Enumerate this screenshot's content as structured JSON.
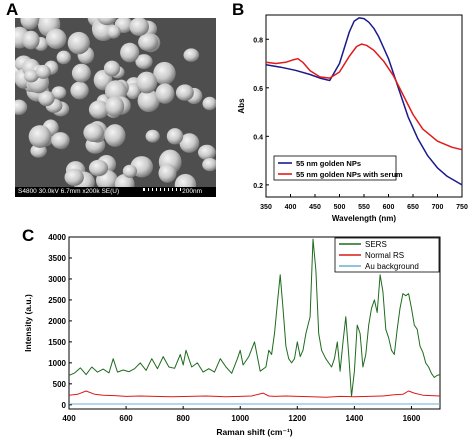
{
  "panels": {
    "a": "A",
    "b": "B",
    "c": "C"
  },
  "sem": {
    "caption": "S4800 30.0kV 6.7mm x200k SE(U)",
    "scale_label": "200nm"
  },
  "chart_data": [
    {
      "type": "line",
      "panel": "B",
      "xlabel": "Wavelength (nm)",
      "ylabel": "Abs",
      "xlim": [
        350,
        750
      ],
      "ylim": [
        0.15,
        0.9
      ],
      "xticks": [
        350,
        400,
        450,
        500,
        550,
        600,
        650,
        700,
        750
      ],
      "yticks": [
        0.2,
        0.4,
        0.6,
        0.8
      ],
      "ytick_labels": [
        "0.2",
        "0.4",
        "0.6",
        "0.8"
      ],
      "legend_position": "bottom-left",
      "series": [
        {
          "name": "55 nm golden NPs",
          "color": "#1a1a8c",
          "x": [
            350,
            380,
            410,
            440,
            460,
            480,
            500,
            520,
            530,
            540,
            550,
            560,
            570,
            580,
            600,
            620,
            640,
            660,
            680,
            700,
            720,
            750
          ],
          "y": [
            0.695,
            0.685,
            0.672,
            0.655,
            0.64,
            0.63,
            0.7,
            0.83,
            0.875,
            0.888,
            0.885,
            0.87,
            0.845,
            0.81,
            0.72,
            0.6,
            0.48,
            0.39,
            0.32,
            0.27,
            0.235,
            0.2
          ]
        },
        {
          "name": "55 nm golden NPs with serum",
          "color": "#e11a1a",
          "x": [
            350,
            370,
            390,
            405,
            415,
            425,
            440,
            460,
            480,
            500,
            520,
            535,
            545,
            555,
            570,
            590,
            610,
            630,
            650,
            670,
            700,
            730,
            750
          ],
          "y": [
            0.705,
            0.7,
            0.705,
            0.715,
            0.72,
            0.705,
            0.67,
            0.645,
            0.64,
            0.665,
            0.73,
            0.77,
            0.78,
            0.775,
            0.755,
            0.71,
            0.65,
            0.57,
            0.49,
            0.43,
            0.38,
            0.355,
            0.345
          ]
        }
      ]
    },
    {
      "type": "line",
      "panel": "C",
      "xlabel": "Raman shift (cm⁻¹)",
      "ylabel": "Intensity (a.u.)",
      "xlim": [
        400,
        1700
      ],
      "ylim": [
        -100,
        4000
      ],
      "xticks": [
        400,
        600,
        800,
        1000,
        1200,
        1400,
        1600
      ],
      "yticks": [
        0,
        500,
        1000,
        1500,
        2000,
        2500,
        3000,
        3500,
        4000
      ],
      "legend_position": "top-right",
      "series": [
        {
          "name": "SERS",
          "color": "#1e6b1e",
          "x": [
            400,
            420,
            440,
            460,
            480,
            500,
            520,
            540,
            555,
            570,
            590,
            610,
            630,
            650,
            670,
            690,
            710,
            730,
            750,
            770,
            790,
            800,
            810,
            830,
            850,
            870,
            890,
            910,
            930,
            950,
            970,
            990,
            1000,
            1010,
            1030,
            1050,
            1070,
            1090,
            1100,
            1110,
            1120,
            1130,
            1140,
            1150,
            1160,
            1170,
            1180,
            1190,
            1200,
            1210,
            1220,
            1230,
            1245,
            1255,
            1265,
            1275,
            1285,
            1300,
            1310,
            1320,
            1330,
            1340,
            1350,
            1360,
            1370,
            1380,
            1390,
            1400,
            1410,
            1420,
            1430,
            1440,
            1450,
            1460,
            1470,
            1480,
            1490,
            1500,
            1510,
            1520,
            1530,
            1540,
            1550,
            1560,
            1570,
            1580,
            1590,
            1600,
            1610,
            1620,
            1630,
            1640,
            1650,
            1660,
            1670,
            1680,
            1690,
            1700
          ],
          "y": [
            700,
            760,
            880,
            720,
            900,
            780,
            850,
            760,
            1100,
            780,
            830,
            790,
            860,
            1000,
            820,
            1100,
            860,
            1150,
            900,
            870,
            1200,
            950,
            1300,
            900,
            1000,
            780,
            860,
            780,
            1100,
            900,
            750,
            1100,
            1300,
            950,
            1150,
            1500,
            800,
            900,
            1300,
            1200,
            1700,
            2400,
            3100,
            2300,
            1400,
            1100,
            1000,
            1100,
            1500,
            1150,
            1300,
            1700,
            2100,
            3950,
            3200,
            1700,
            1300,
            1100,
            1000,
            900,
            1100,
            1500,
            800,
            1500,
            2100,
            1200,
            200,
            800,
            1900,
            1700,
            900,
            1200,
            1900,
            2300,
            2500,
            2200,
            3100,
            2700,
            1800,
            1600,
            1300,
            1200,
            1800,
            2300,
            2650,
            2600,
            2650,
            2300,
            1900,
            1800,
            1400,
            1250,
            1000,
            900,
            750,
            650,
            700,
            720
          ]
        },
        {
          "name": "Normal RS",
          "color": "#d81b1b",
          "x": [
            400,
            430,
            460,
            490,
            520,
            560,
            600,
            650,
            700,
            760,
            820,
            880,
            950,
            1000,
            1040,
            1080,
            1100,
            1120,
            1160,
            1200,
            1250,
            1300,
            1350,
            1400,
            1450,
            1500,
            1540,
            1570,
            1590,
            1610,
            1640,
            1670,
            1700
          ],
          "y": [
            230,
            250,
            330,
            250,
            230,
            220,
            200,
            210,
            200,
            190,
            200,
            210,
            190,
            200,
            210,
            280,
            210,
            200,
            210,
            200,
            190,
            180,
            200,
            190,
            200,
            210,
            240,
            250,
            330,
            280,
            230,
            220,
            210
          ]
        },
        {
          "name": "Au background",
          "color": "#6ab0d6",
          "x": [
            400,
            700,
            1000,
            1300,
            1700
          ],
          "y": [
            20,
            20,
            20,
            20,
            20
          ]
        }
      ]
    }
  ]
}
